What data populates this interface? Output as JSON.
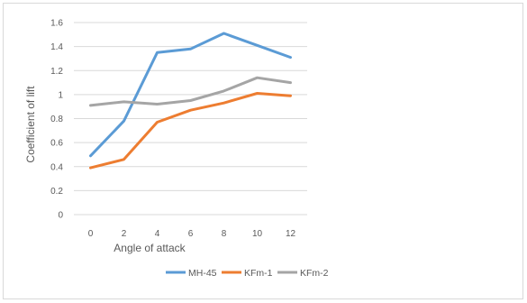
{
  "chart_data": {
    "type": "line",
    "title": "",
    "xlabel": "Angle of attack",
    "ylabel": "Coefficient of lift",
    "x": [
      0,
      2,
      4,
      6,
      8,
      10,
      12
    ],
    "ylim": [
      0,
      1.6
    ],
    "yticks": [
      0,
      0.2,
      0.4,
      0.6,
      0.8,
      1,
      1.2,
      1.4,
      1.6
    ],
    "ytick_labels": [
      "0",
      "0.2",
      "0.4",
      "0.6",
      "0.8",
      "1",
      "1.2",
      "1.4",
      "1.6"
    ],
    "grid": true,
    "legend_position": "bottom",
    "series": [
      {
        "name": "MH-45",
        "color": "#5B9BD5",
        "values": [
          0.49,
          0.78,
          1.35,
          1.38,
          1.51,
          1.41,
          1.31
        ]
      },
      {
        "name": "KFm-1",
        "color": "#ED7D31",
        "values": [
          0.39,
          0.46,
          0.77,
          0.87,
          0.93,
          1.01,
          0.99
        ]
      },
      {
        "name": "KFm-2",
        "color": "#A5A5A5",
        "values": [
          0.91,
          0.94,
          0.92,
          0.95,
          1.03,
          1.14,
          1.1
        ]
      }
    ]
  }
}
